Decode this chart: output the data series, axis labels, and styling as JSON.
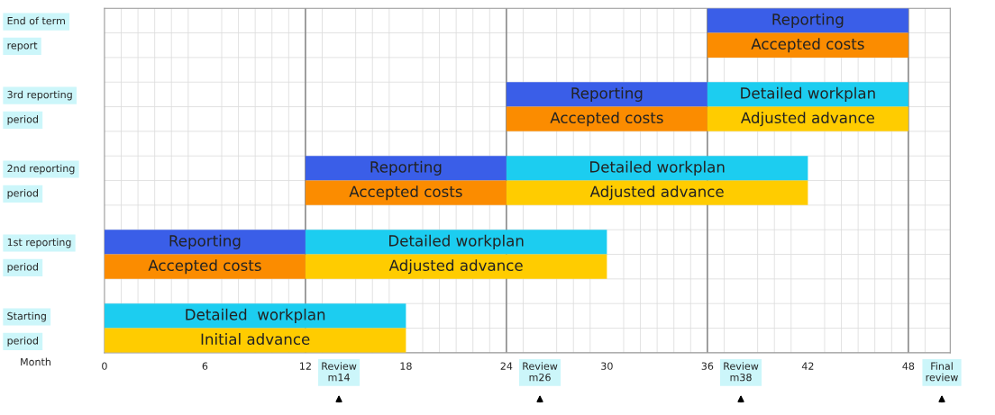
{
  "chart_data": {
    "type": "bar",
    "orientation": "horizontal",
    "xlabel": "Month",
    "categories": [
      "End of term",
      "report",
      null,
      "3rd reporting",
      "period",
      null,
      "2nd reporting",
      "period",
      null,
      "1st reporting",
      "period",
      null,
      "Starting",
      "period"
    ],
    "series": [
      {
        "color": "#3a5ee8",
        "base": [
          36,
          null,
          null,
          24,
          null,
          null,
          12,
          null,
          null,
          0,
          null,
          null,
          null,
          null
        ],
        "values": [
          12,
          null,
          null,
          12,
          null,
          null,
          12,
          null,
          null,
          12,
          null,
          null,
          null,
          null
        ],
        "value_labels": [
          "Reporting",
          null,
          null,
          "Reporting",
          null,
          null,
          "Reporting",
          null,
          null,
          "Reporting",
          null,
          null,
          null,
          null
        ]
      },
      {
        "color": "#1ccdf0",
        "base": [
          null,
          null,
          null,
          36,
          null,
          null,
          24,
          null,
          null,
          12,
          null,
          null,
          0,
          null
        ],
        "values": [
          null,
          null,
          null,
          12,
          null,
          null,
          18,
          null,
          null,
          18,
          null,
          null,
          18,
          null
        ],
        "value_labels": [
          null,
          null,
          null,
          "Detailed workplan",
          null,
          null,
          "Detailed workplan",
          null,
          null,
          "Detailed workplan",
          null,
          null,
          "Detailed  workplan",
          null
        ]
      },
      {
        "color": "#fb8c00",
        "base": [
          null,
          36,
          null,
          null,
          24,
          null,
          null,
          12,
          null,
          null,
          0,
          null,
          null,
          null
        ],
        "values": [
          null,
          12,
          null,
          null,
          12,
          null,
          null,
          12,
          null,
          null,
          12,
          null,
          null,
          null
        ],
        "value_labels": [
          null,
          "Accepted costs",
          null,
          null,
          "Accepted costs",
          null,
          null,
          "Accepted costs",
          null,
          null,
          "Accepted costs",
          null,
          null,
          null
        ]
      },
      {
        "color": "#ffcc00",
        "base": [
          null,
          null,
          null,
          null,
          36,
          null,
          null,
          24,
          null,
          null,
          12,
          null,
          null,
          0
        ],
        "values": [
          null,
          null,
          null,
          null,
          12,
          null,
          null,
          18,
          null,
          null,
          18,
          null,
          null,
          18
        ],
        "value_labels": [
          null,
          null,
          null,
          null,
          "Adjusted advance",
          null,
          null,
          "Adjusted advance",
          null,
          null,
          "Adjusted advance",
          null,
          null,
          "Initial advance"
        ]
      }
    ],
    "xlim": [
      0,
      50.5
    ],
    "xticks": [
      0,
      6,
      12,
      {
        "value": 14,
        "label": "Review\nm14"
      },
      18,
      24,
      {
        "value": 26,
        "label": "Review\nm26"
      },
      30,
      36,
      {
        "value": 38,
        "label": "Review\nm38"
      },
      42,
      48,
      {
        "value": 50,
        "label": "Final\nreview"
      }
    ],
    "grid": true,
    "ref_lines": [
      {
        "axis": "x",
        "value": 12,
        "color": "#8c8c8c"
      },
      {
        "axis": "x",
        "value": 24,
        "color": "#8c8c8c"
      },
      {
        "axis": "x",
        "value": 36,
        "color": "#8c8c8c"
      },
      {
        "axis": "x",
        "value": 48,
        "color": "#8c8c8c"
      }
    ]
  }
}
